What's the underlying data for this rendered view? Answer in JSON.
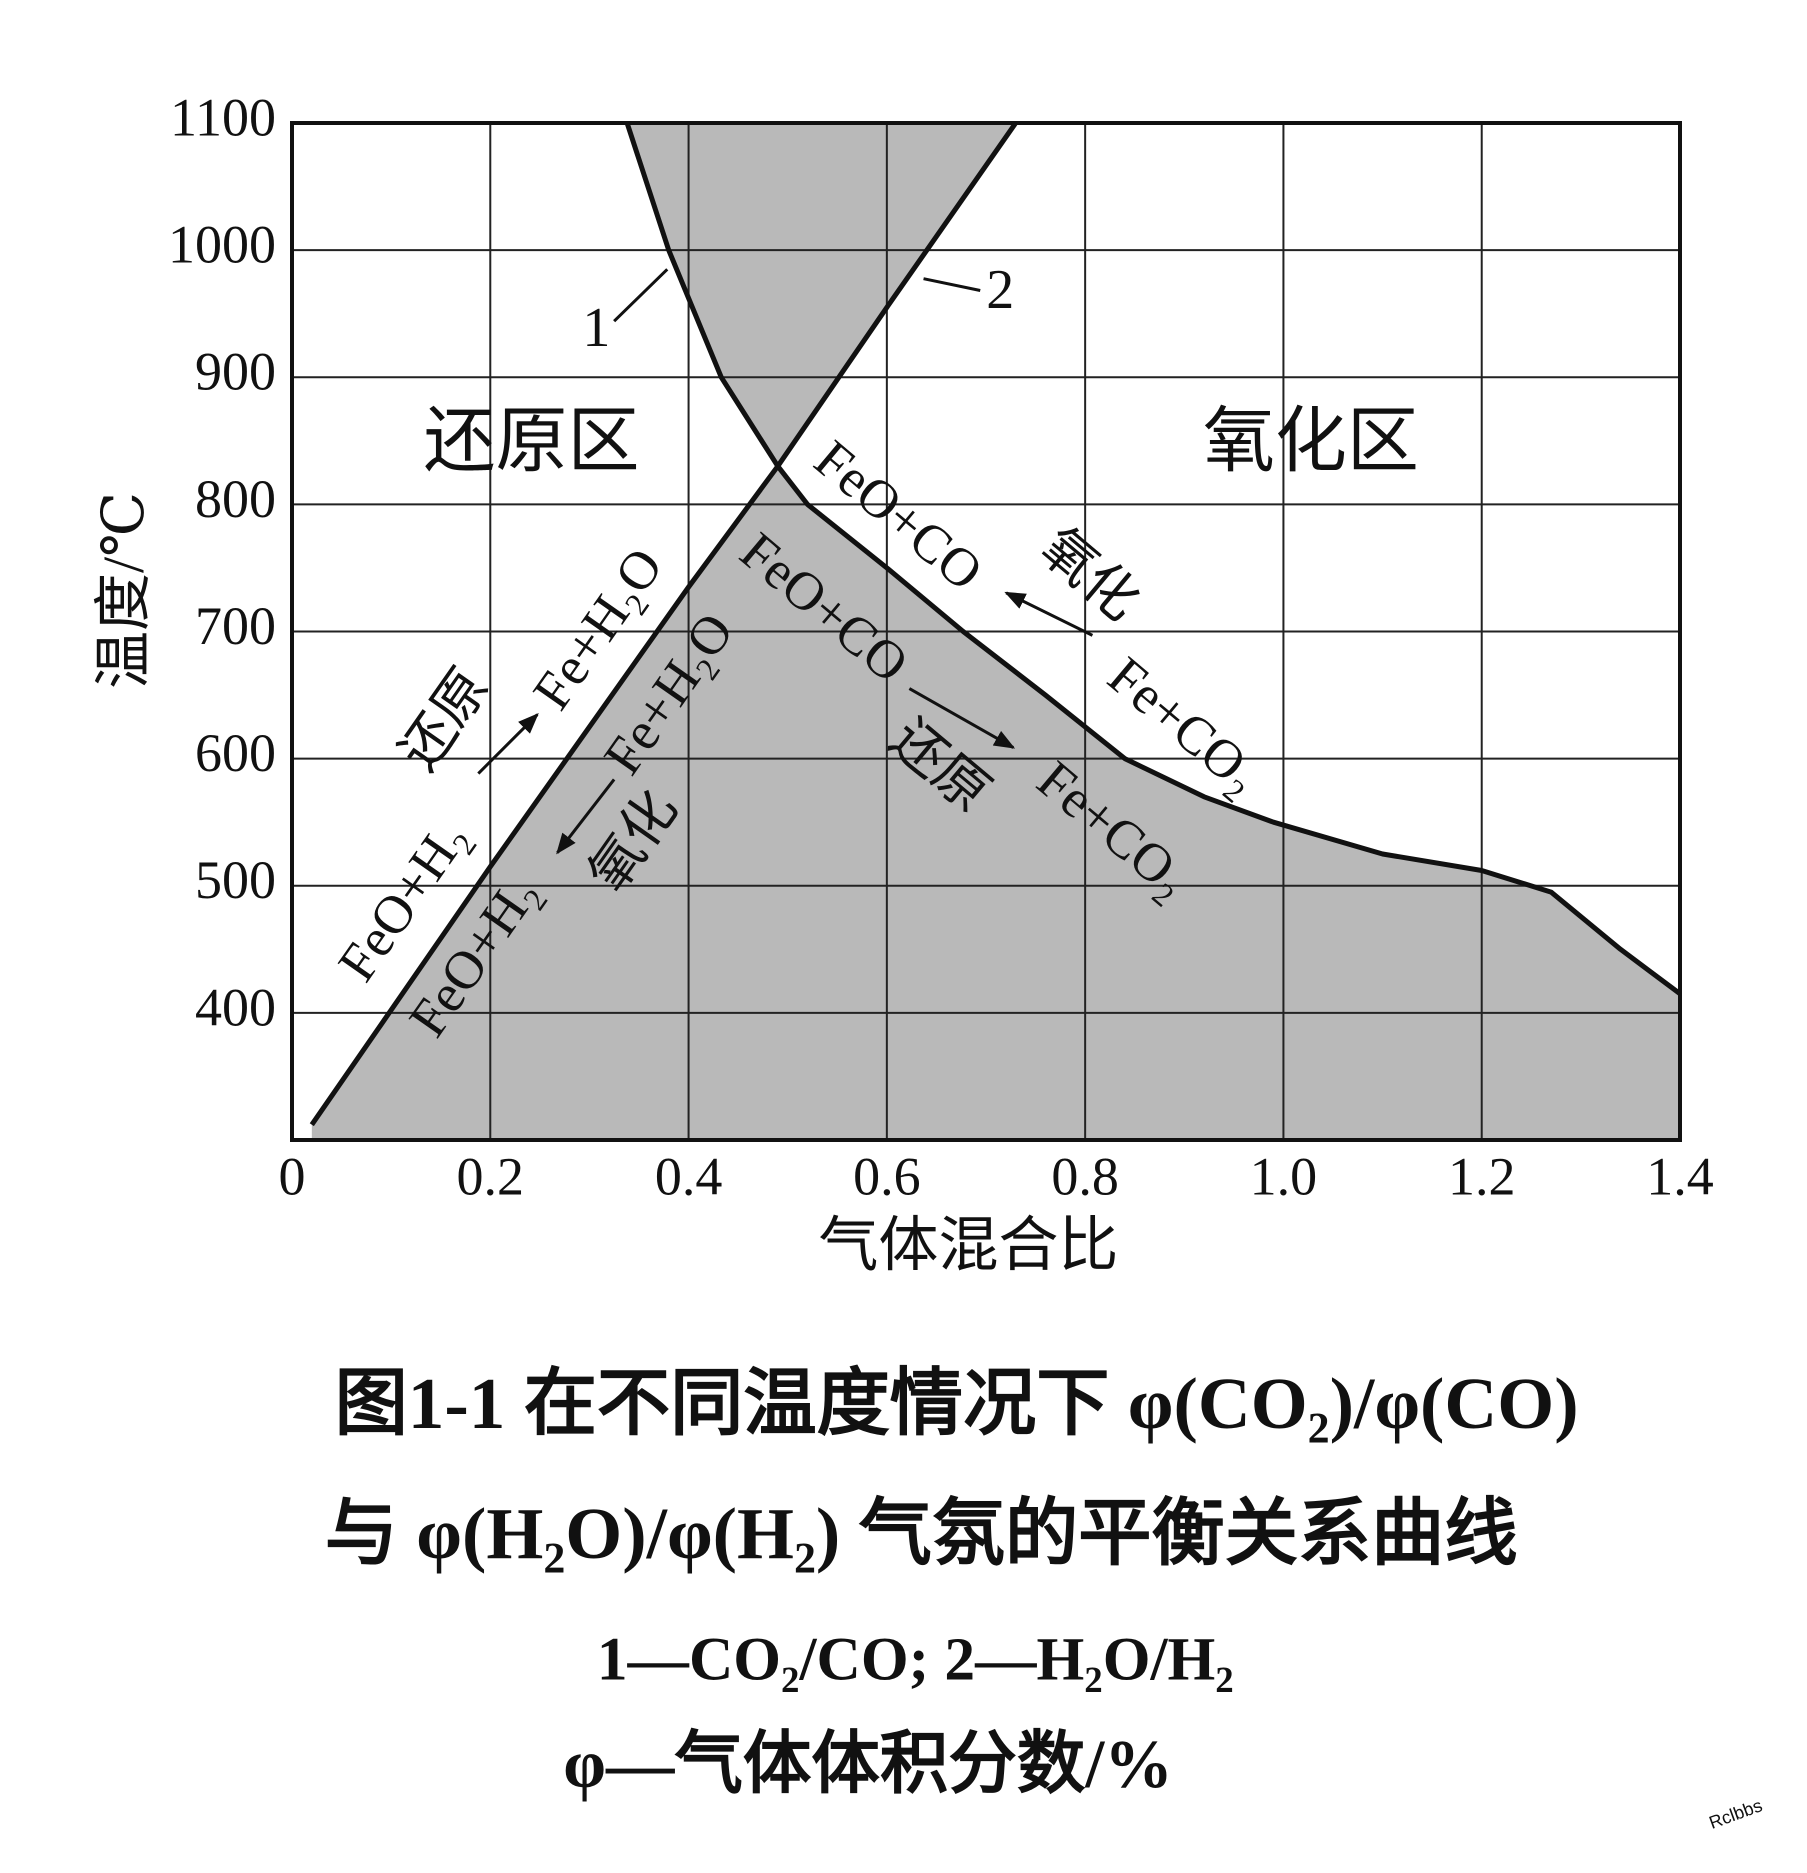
{
  "chart_data": {
    "type": "line",
    "x_label": "气体混合比",
    "y_label": "温度/℃",
    "xlim": [
      0,
      1.4
    ],
    "ylim": [
      300,
      1100
    ],
    "xticks": [
      0,
      0.2,
      0.4,
      0.6,
      0.8,
      {
        "value": 1,
        "label": "1.0"
      },
      1.2,
      1.4
    ],
    "yticks": [
      400,
      500,
      600,
      700,
      800,
      900,
      1000,
      1100
    ],
    "grid": true,
    "fill_color": "#b9b9b9",
    "series": [
      {
        "name": "1",
        "color": "#111111",
        "x": [
          0.338,
          0.38,
          0.433,
          0.49,
          0.52,
          0.6,
          0.677,
          0.76,
          0.84,
          0.92,
          0.99,
          1.1,
          1.2,
          1.27,
          1.34,
          1.4
        ],
        "values": [
          1100,
          1000,
          900,
          830,
          800,
          750,
          700,
          650,
          600,
          570,
          550,
          525,
          512,
          495,
          450,
          415
        ]
      },
      {
        "name": "2",
        "color": "#111111",
        "x": [
          0.02,
          0.2,
          0.4,
          0.49,
          0.6,
          0.73
        ],
        "values": [
          312,
          515,
          735,
          830,
          955,
          1100
        ]
      }
    ],
    "region_labels": [
      "还原区",
      "氧化区"
    ],
    "annotations": [
      "FeO+H₂",
      "还原",
      "Fe+H₂O",
      "FeO+H₂",
      "氧化",
      "Fe+H₂O",
      "FeO+CO",
      "氧化",
      "Fe+CO₂",
      "FeO+CO",
      "还原",
      "Fe+CO₂"
    ],
    "caption": [
      "图1-1  在不同温度情况下 φ(CO₂)/φ(CO)",
      "与 φ(H₂O)/φ(H₂) 气氛的平衡关系曲线",
      "1—CO₂/CO; 2—H₂O/H₂",
      "φ—气体体积分数/%"
    ],
    "watermark": "Rclbbs"
  }
}
